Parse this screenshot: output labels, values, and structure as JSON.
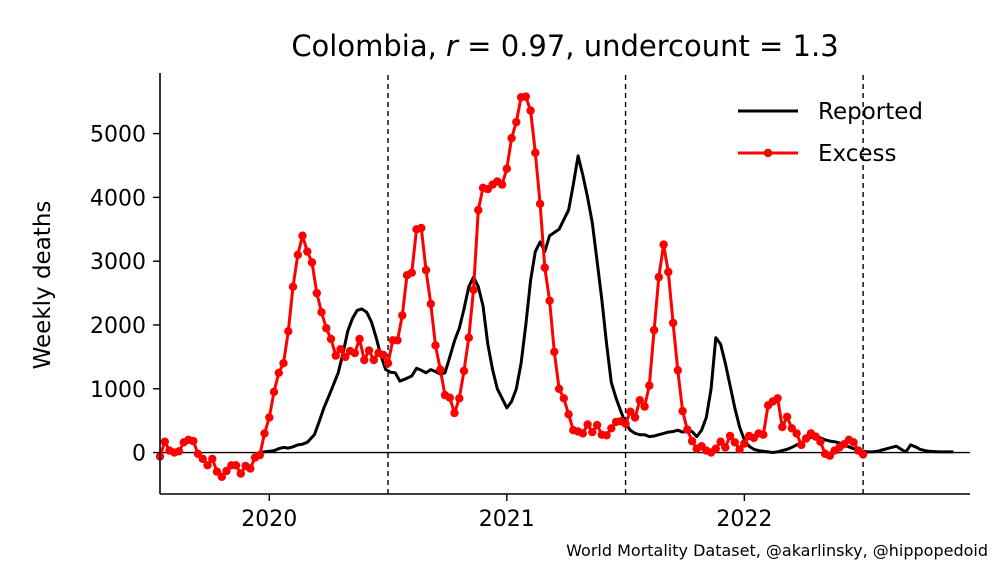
{
  "chart_data": {
    "type": "line",
    "title": "Colombia, r = 0.97, undercount = 1.3",
    "title_parts": {
      "country": "Colombia, ",
      "r_sym": "r",
      "r_eq": " = 0.97, undercount = 1.3"
    },
    "xlabel": "",
    "ylabel": "Weekly deaths",
    "xlim": [
      2019.54,
      2022.95
    ],
    "ylim": [
      -650,
      5950
    ],
    "x_ticks": [
      {
        "value": 2020.0,
        "label": "2020"
      },
      {
        "value": 2021.0,
        "label": "2021"
      },
      {
        "value": 2022.0,
        "label": "2022"
      }
    ],
    "y_ticks": [
      {
        "value": 0,
        "label": "0"
      },
      {
        "value": 1000,
        "label": "1000"
      },
      {
        "value": 2000,
        "label": "2000"
      },
      {
        "value": 3000,
        "label": "3000"
      },
      {
        "value": 4000,
        "label": "4000"
      },
      {
        "value": 5000,
        "label": "5000"
      }
    ],
    "vlines": [
      2020.5,
      2021.5,
      2022.5
    ],
    "legend_position": "top-right",
    "grid": false,
    "series": [
      {
        "name": "Reported",
        "color": "#000000",
        "marker": false,
        "points": [
          [
            2019.96,
            0
          ],
          [
            2020.0,
            20
          ],
          [
            2020.02,
            30
          ],
          [
            2020.04,
            60
          ],
          [
            2020.06,
            80
          ],
          [
            2020.08,
            70
          ],
          [
            2020.1,
            90
          ],
          [
            2020.12,
            120
          ],
          [
            2020.14,
            130
          ],
          [
            2020.16,
            160
          ],
          [
            2020.19,
            280
          ],
          [
            2020.21,
            480
          ],
          [
            2020.23,
            700
          ],
          [
            2020.25,
            880
          ],
          [
            2020.27,
            1060
          ],
          [
            2020.29,
            1250
          ],
          [
            2020.31,
            1550
          ],
          [
            2020.33,
            1900
          ],
          [
            2020.35,
            2100
          ],
          [
            2020.37,
            2230
          ],
          [
            2020.39,
            2250
          ],
          [
            2020.41,
            2200
          ],
          [
            2020.43,
            2050
          ],
          [
            2020.45,
            1800
          ],
          [
            2020.47,
            1520
          ],
          [
            2020.49,
            1300
          ],
          [
            2020.51,
            1260
          ],
          [
            2020.53,
            1250
          ],
          [
            2020.55,
            1120
          ],
          [
            2020.57,
            1150
          ],
          [
            2020.6,
            1200
          ],
          [
            2020.62,
            1320
          ],
          [
            2020.64,
            1290
          ],
          [
            2020.66,
            1250
          ],
          [
            2020.68,
            1300
          ],
          [
            2020.7,
            1270
          ],
          [
            2020.72,
            1230
          ],
          [
            2020.74,
            1250
          ],
          [
            2020.76,
            1500
          ],
          [
            2020.78,
            1750
          ],
          [
            2020.8,
            1950
          ],
          [
            2020.82,
            2250
          ],
          [
            2020.84,
            2600
          ],
          [
            2020.86,
            2750
          ],
          [
            2020.88,
            2600
          ],
          [
            2020.9,
            2300
          ],
          [
            2020.92,
            1700
          ],
          [
            2020.94,
            1300
          ],
          [
            2020.96,
            1000
          ],
          [
            2020.98,
            850
          ],
          [
            2021.0,
            700
          ],
          [
            2021.02,
            800
          ],
          [
            2021.04,
            1000
          ],
          [
            2021.06,
            1400
          ],
          [
            2021.08,
            2000
          ],
          [
            2021.1,
            2700
          ],
          [
            2021.12,
            3150
          ],
          [
            2021.14,
            3300
          ],
          [
            2021.16,
            3150
          ],
          [
            2021.18,
            3400
          ],
          [
            2021.2,
            3450
          ],
          [
            2021.22,
            3500
          ],
          [
            2021.24,
            3650
          ],
          [
            2021.26,
            3800
          ],
          [
            2021.28,
            4200
          ],
          [
            2021.3,
            4650
          ],
          [
            2021.32,
            4350
          ],
          [
            2021.34,
            4000
          ],
          [
            2021.36,
            3600
          ],
          [
            2021.38,
            3000
          ],
          [
            2021.4,
            2400
          ],
          [
            2021.42,
            1700
          ],
          [
            2021.44,
            1100
          ],
          [
            2021.46,
            850
          ],
          [
            2021.48,
            650
          ],
          [
            2021.5,
            450
          ],
          [
            2021.52,
            350
          ],
          [
            2021.54,
            300
          ],
          [
            2021.56,
            280
          ],
          [
            2021.58,
            280
          ],
          [
            2021.6,
            250
          ],
          [
            2021.62,
            260
          ],
          [
            2021.64,
            280
          ],
          [
            2021.66,
            300
          ],
          [
            2021.68,
            320
          ],
          [
            2021.7,
            330
          ],
          [
            2021.72,
            350
          ],
          [
            2021.74,
            320
          ],
          [
            2021.76,
            340
          ],
          [
            2021.78,
            330
          ],
          [
            2021.8,
            250
          ],
          [
            2021.82,
            350
          ],
          [
            2021.84,
            550
          ],
          [
            2021.86,
            1000
          ],
          [
            2021.88,
            1800
          ],
          [
            2021.9,
            1700
          ],
          [
            2021.92,
            1400
          ],
          [
            2021.94,
            1050
          ],
          [
            2021.96,
            700
          ],
          [
            2021.98,
            400
          ],
          [
            2022.0,
            200
          ],
          [
            2022.02,
            100
          ],
          [
            2022.04,
            50
          ],
          [
            2022.06,
            30
          ],
          [
            2022.08,
            20
          ],
          [
            2022.1,
            10
          ],
          [
            2022.12,
            0
          ],
          [
            2022.14,
            10
          ],
          [
            2022.16,
            30
          ],
          [
            2022.18,
            50
          ],
          [
            2022.2,
            80
          ],
          [
            2022.22,
            120
          ],
          [
            2022.24,
            150
          ],
          [
            2022.26,
            200
          ],
          [
            2022.28,
            240
          ],
          [
            2022.3,
            250
          ],
          [
            2022.32,
            230
          ],
          [
            2022.34,
            200
          ],
          [
            2022.36,
            180
          ],
          [
            2022.38,
            170
          ],
          [
            2022.4,
            150
          ],
          [
            2022.42,
            120
          ],
          [
            2022.44,
            90
          ],
          [
            2022.46,
            60
          ],
          [
            2022.48,
            40
          ],
          [
            2022.5,
            20
          ],
          [
            2022.52,
            10
          ],
          [
            2022.54,
            10
          ],
          [
            2022.56,
            20
          ],
          [
            2022.58,
            40
          ],
          [
            2022.6,
            60
          ],
          [
            2022.62,
            80
          ],
          [
            2022.64,
            100
          ],
          [
            2022.66,
            50
          ],
          [
            2022.68,
            10
          ],
          [
            2022.7,
            120
          ],
          [
            2022.72,
            90
          ],
          [
            2022.74,
            50
          ],
          [
            2022.76,
            30
          ],
          [
            2022.78,
            20
          ],
          [
            2022.8,
            15
          ],
          [
            2022.82,
            10
          ],
          [
            2022.84,
            10
          ],
          [
            2022.86,
            10
          ],
          [
            2022.88,
            10
          ]
        ]
      },
      {
        "name": "Excess",
        "color": "#ff0000",
        "marker": true,
        "points": [
          [
            2019.54,
            -60
          ],
          [
            2019.56,
            170
          ],
          [
            2019.58,
            30
          ],
          [
            2019.6,
            0
          ],
          [
            2019.62,
            20
          ],
          [
            2019.64,
            160
          ],
          [
            2019.66,
            200
          ],
          [
            2019.68,
            180
          ],
          [
            2019.7,
            -20
          ],
          [
            2019.72,
            -100
          ],
          [
            2019.74,
            -200
          ],
          [
            2019.76,
            -100
          ],
          [
            2019.78,
            -300
          ],
          [
            2019.8,
            -380
          ],
          [
            2019.82,
            -290
          ],
          [
            2019.84,
            -200
          ],
          [
            2019.86,
            -200
          ],
          [
            2019.88,
            -330
          ],
          [
            2019.9,
            -210
          ],
          [
            2019.92,
            -250
          ],
          [
            2019.94,
            -80
          ],
          [
            2019.96,
            -40
          ],
          [
            2019.98,
            300
          ],
          [
            2020.0,
            550
          ],
          [
            2020.02,
            950
          ],
          [
            2020.04,
            1250
          ],
          [
            2020.06,
            1400
          ],
          [
            2020.08,
            1900
          ],
          [
            2020.1,
            2600
          ],
          [
            2020.12,
            3100
          ],
          [
            2020.14,
            3400
          ],
          [
            2020.16,
            3150
          ],
          [
            2020.18,
            2980
          ],
          [
            2020.2,
            2500
          ],
          [
            2020.22,
            2200
          ],
          [
            2020.24,
            1950
          ],
          [
            2020.26,
            1780
          ],
          [
            2020.28,
            1520
          ],
          [
            2020.3,
            1620
          ],
          [
            2020.32,
            1500
          ],
          [
            2020.34,
            1590
          ],
          [
            2020.36,
            1560
          ],
          [
            2020.38,
            1780
          ],
          [
            2020.4,
            1450
          ],
          [
            2020.42,
            1600
          ],
          [
            2020.44,
            1450
          ],
          [
            2020.46,
            1560
          ],
          [
            2020.48,
            1530
          ],
          [
            2020.5,
            1400
          ],
          [
            2020.52,
            1760
          ],
          [
            2020.54,
            1760
          ],
          [
            2020.56,
            2150
          ],
          [
            2020.58,
            2780
          ],
          [
            2020.6,
            2820
          ],
          [
            2020.62,
            3500
          ],
          [
            2020.64,
            3520
          ],
          [
            2020.66,
            2860
          ],
          [
            2020.68,
            2330
          ],
          [
            2020.7,
            1680
          ],
          [
            2020.72,
            1300
          ],
          [
            2020.74,
            900
          ],
          [
            2020.76,
            860
          ],
          [
            2020.78,
            620
          ],
          [
            2020.8,
            850
          ],
          [
            2020.82,
            1280
          ],
          [
            2020.84,
            1800
          ],
          [
            2020.86,
            2550
          ],
          [
            2020.88,
            3800
          ],
          [
            2020.9,
            4150
          ],
          [
            2020.92,
            4130
          ],
          [
            2020.94,
            4200
          ],
          [
            2020.96,
            4250
          ],
          [
            2020.98,
            4200
          ],
          [
            2021.0,
            4450
          ],
          [
            2021.02,
            4930
          ],
          [
            2021.04,
            5180
          ],
          [
            2021.06,
            5570
          ],
          [
            2021.08,
            5580
          ],
          [
            2021.1,
            5360
          ],
          [
            2021.12,
            4700
          ],
          [
            2021.14,
            3900
          ],
          [
            2021.16,
            2900
          ],
          [
            2021.18,
            2380
          ],
          [
            2021.2,
            1580
          ],
          [
            2021.22,
            1000
          ],
          [
            2021.24,
            850
          ],
          [
            2021.26,
            600
          ],
          [
            2021.28,
            350
          ],
          [
            2021.3,
            330
          ],
          [
            2021.32,
            300
          ],
          [
            2021.34,
            440
          ],
          [
            2021.36,
            320
          ],
          [
            2021.38,
            430
          ],
          [
            2021.4,
            280
          ],
          [
            2021.42,
            270
          ],
          [
            2021.44,
            380
          ],
          [
            2021.46,
            480
          ],
          [
            2021.48,
            490
          ],
          [
            2021.5,
            450
          ],
          [
            2021.52,
            640
          ],
          [
            2021.54,
            550
          ],
          [
            2021.56,
            820
          ],
          [
            2021.58,
            720
          ],
          [
            2021.6,
            1050
          ],
          [
            2021.62,
            1920
          ],
          [
            2021.64,
            2750
          ],
          [
            2021.66,
            3260
          ],
          [
            2021.68,
            2830
          ],
          [
            2021.7,
            2030
          ],
          [
            2021.72,
            1290
          ],
          [
            2021.74,
            650
          ],
          [
            2021.76,
            360
          ],
          [
            2021.78,
            180
          ],
          [
            2021.8,
            60
          ],
          [
            2021.82,
            100
          ],
          [
            2021.84,
            30
          ],
          [
            2021.86,
            0
          ],
          [
            2021.88,
            60
          ],
          [
            2021.9,
            170
          ],
          [
            2021.92,
            80
          ],
          [
            2021.94,
            260
          ],
          [
            2021.96,
            160
          ],
          [
            2021.98,
            50
          ],
          [
            2022.0,
            140
          ],
          [
            2022.02,
            260
          ],
          [
            2022.04,
            230
          ],
          [
            2022.06,
            300
          ],
          [
            2022.08,
            280
          ],
          [
            2022.1,
            740
          ],
          [
            2022.12,
            800
          ],
          [
            2022.14,
            850
          ],
          [
            2022.16,
            400
          ],
          [
            2022.18,
            560
          ],
          [
            2022.2,
            380
          ],
          [
            2022.22,
            300
          ],
          [
            2022.24,
            120
          ],
          [
            2022.26,
            220
          ],
          [
            2022.28,
            300
          ],
          [
            2022.3,
            250
          ],
          [
            2022.32,
            170
          ],
          [
            2022.34,
            -20
          ],
          [
            2022.36,
            -50
          ],
          [
            2022.38,
            30
          ],
          [
            2022.4,
            80
          ],
          [
            2022.42,
            130
          ],
          [
            2022.44,
            200
          ],
          [
            2022.46,
            160
          ],
          [
            2022.48,
            30
          ],
          [
            2022.5,
            -30
          ]
        ]
      }
    ]
  },
  "credit": "World Mortality Dataset, @akarlinsky, @hippopedoid"
}
